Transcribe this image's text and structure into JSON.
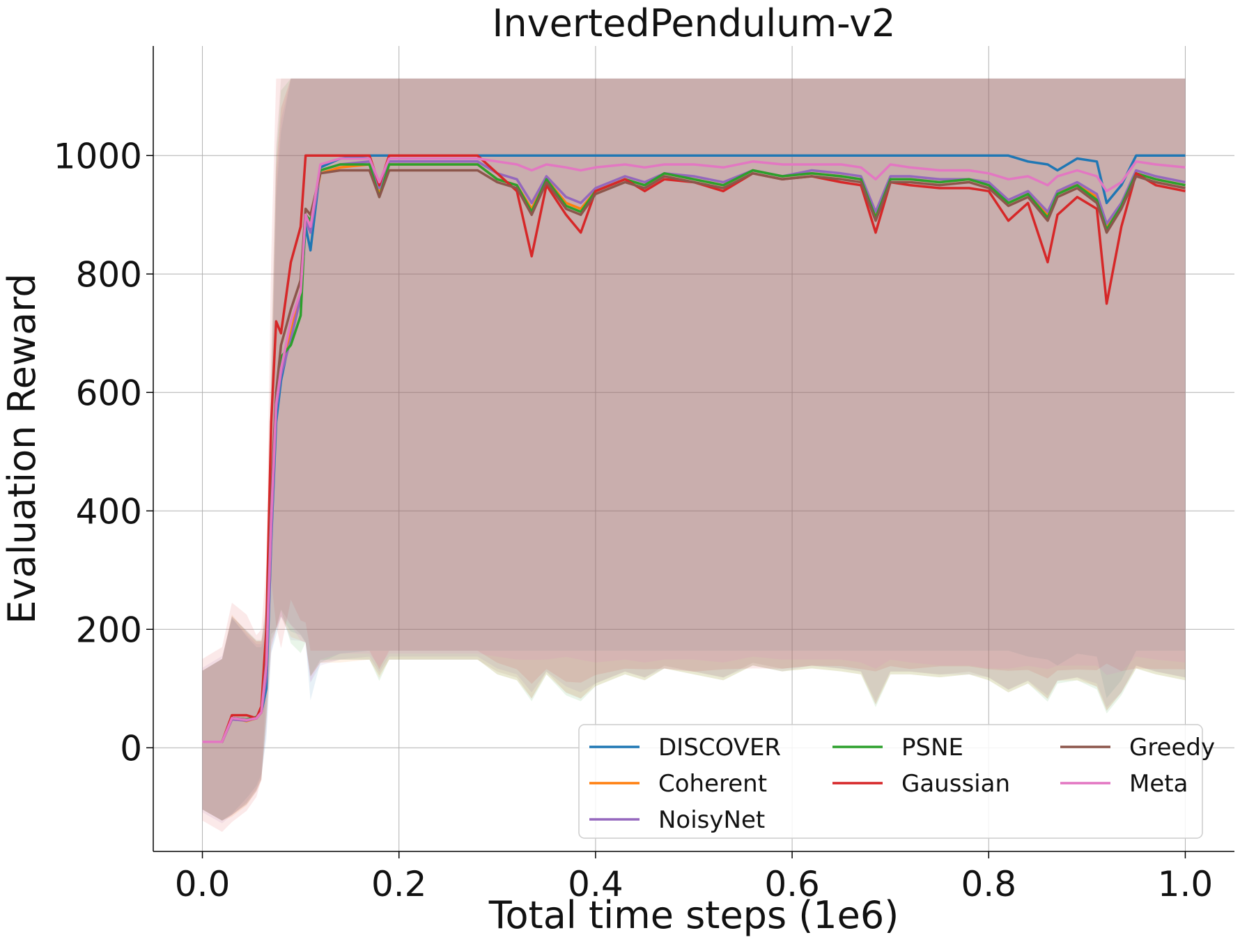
{
  "chart_data": {
    "type": "line",
    "title": "InvertedPendulum-v2",
    "xlabel": "Total time steps (1e6)",
    "ylabel": "Evaluation Reward",
    "xlim": [
      -0.05,
      1.05
    ],
    "ylim": [
      -175,
      1185
    ],
    "xticks": [
      0.0,
      0.2,
      0.4,
      0.6,
      0.8,
      1.0
    ],
    "xtick_labels": [
      "0.0",
      "0.2",
      "0.4",
      "0.6",
      "0.8",
      "1.0"
    ],
    "yticks": [
      0,
      200,
      400,
      600,
      800,
      1000
    ],
    "ytick_labels": [
      "0",
      "200",
      "400",
      "600",
      "800",
      "1000"
    ],
    "grid": true,
    "legend_position": "lower-right",
    "legend_columns": 3,
    "x": [
      0.0,
      0.02,
      0.03,
      0.045,
      0.055,
      0.06,
      0.065,
      0.07,
      0.075,
      0.08,
      0.09,
      0.1,
      0.105,
      0.11,
      0.12,
      0.14,
      0.17,
      0.18,
      0.19,
      0.22,
      0.25,
      0.28,
      0.3,
      0.32,
      0.335,
      0.35,
      0.37,
      0.385,
      0.4,
      0.43,
      0.45,
      0.47,
      0.5,
      0.53,
      0.56,
      0.59,
      0.62,
      0.65,
      0.67,
      0.685,
      0.7,
      0.72,
      0.75,
      0.78,
      0.8,
      0.82,
      0.84,
      0.86,
      0.87,
      0.89,
      0.91,
      0.92,
      0.935,
      0.95,
      0.97,
      1.0
    ],
    "series": [
      {
        "name": "DISCOVER",
        "color": "#1f77b4",
        "values": [
          10,
          10,
          50,
          48,
          50,
          60,
          100,
          350,
          550,
          620,
          700,
          760,
          880,
          840,
          980,
          995,
          1000,
          1000,
          1000,
          1000,
          1000,
          1000,
          1000,
          1000,
          1000,
          1000,
          1000,
          1000,
          1000,
          1000,
          1000,
          1000,
          1000,
          1000,
          1000,
          1000,
          1000,
          1000,
          1000,
          1000,
          1000,
          1000,
          1000,
          1000,
          1000,
          1000,
          990,
          985,
          975,
          995,
          990,
          920,
          950,
          1000,
          1000,
          1000
        ],
        "band": [
          120,
          140,
          170,
          140,
          120,
          110,
          90,
          200,
          380,
          420,
          530,
          600,
          740,
          800,
          880,
          880,
          880,
          880,
          880,
          880,
          880,
          880,
          880,
          880,
          880,
          880,
          880,
          880,
          880,
          880,
          880,
          880,
          880,
          880,
          880,
          880,
          880,
          880,
          880,
          880,
          880,
          880,
          880,
          880,
          880,
          880,
          880,
          880,
          880,
          880,
          880,
          880,
          880,
          880,
          880,
          880
        ]
      },
      {
        "name": "Coherent",
        "color": "#ff7f0e",
        "values": [
          10,
          10,
          50,
          45,
          50,
          60,
          130,
          380,
          580,
          640,
          700,
          770,
          900,
          880,
          970,
          980,
          985,
          935,
          985,
          985,
          985,
          985,
          960,
          950,
          910,
          960,
          920,
          910,
          940,
          960,
          950,
          970,
          960,
          950,
          975,
          965,
          970,
          965,
          960,
          900,
          960,
          960,
          955,
          960,
          950,
          920,
          935,
          900,
          940,
          950,
          930,
          880,
          920,
          970,
          960,
          950
        ],
        "band": [
          120,
          140,
          175,
          150,
          130,
          120,
          90,
          220,
          400,
          440,
          540,
          620,
          760,
          800,
          870,
          880,
          880,
          860,
          880,
          880,
          880,
          880,
          880,
          880,
          870,
          880,
          870,
          870,
          880,
          880,
          880,
          880,
          880,
          880,
          880,
          880,
          880,
          880,
          880,
          870,
          880,
          880,
          880,
          880,
          880,
          870,
          870,
          860,
          870,
          880,
          870,
          860,
          870,
          880,
          880,
          880
        ]
      },
      {
        "name": "NoisyNet",
        "color": "#9467bd",
        "values": [
          10,
          10,
          48,
          46,
          50,
          60,
          120,
          360,
          570,
          630,
          690,
          760,
          890,
          870,
          975,
          985,
          990,
          945,
          990,
          990,
          990,
          990,
          970,
          960,
          920,
          965,
          930,
          920,
          945,
          965,
          955,
          970,
          965,
          955,
          975,
          965,
          975,
          970,
          965,
          905,
          965,
          965,
          960,
          960,
          955,
          925,
          940,
          905,
          940,
          955,
          935,
          885,
          920,
          975,
          965,
          955
        ],
        "band": [
          125,
          145,
          170,
          145,
          125,
          115,
          100,
          210,
          390,
          430,
          535,
          610,
          750,
          800,
          880,
          880,
          880,
          860,
          880,
          880,
          880,
          880,
          880,
          880,
          870,
          880,
          870,
          870,
          880,
          880,
          880,
          880,
          880,
          880,
          880,
          880,
          880,
          880,
          880,
          870,
          880,
          880,
          880,
          880,
          880,
          870,
          870,
          860,
          870,
          880,
          870,
          860,
          870,
          880,
          880,
          880
        ]
      },
      {
        "name": "PSNE",
        "color": "#2ca02c",
        "values": [
          10,
          10,
          50,
          48,
          52,
          62,
          140,
          400,
          590,
          660,
          680,
          730,
          900,
          890,
          975,
          985,
          985,
          930,
          985,
          985,
          985,
          985,
          960,
          950,
          905,
          960,
          915,
          905,
          940,
          960,
          950,
          970,
          960,
          950,
          975,
          965,
          970,
          965,
          960,
          895,
          960,
          960,
          955,
          960,
          950,
          920,
          935,
          895,
          935,
          950,
          925,
          875,
          915,
          970,
          960,
          950
        ],
        "band": [
          120,
          140,
          172,
          150,
          130,
          120,
          95,
          230,
          410,
          450,
          530,
          600,
          760,
          810,
          870,
          880,
          880,
          860,
          880,
          880,
          880,
          880,
          880,
          880,
          870,
          880,
          870,
          870,
          880,
          880,
          880,
          880,
          880,
          880,
          880,
          880,
          880,
          880,
          880,
          870,
          880,
          880,
          880,
          880,
          880,
          870,
          870,
          860,
          870,
          880,
          870,
          860,
          870,
          880,
          880,
          880
        ]
      },
      {
        "name": "Gaussian",
        "color": "#d62728",
        "values": [
          10,
          10,
          55,
          55,
          50,
          70,
          200,
          550,
          720,
          700,
          820,
          880,
          1000,
          1000,
          1000,
          1000,
          1000,
          950,
          1000,
          1000,
          1000,
          1000,
          970,
          940,
          830,
          950,
          900,
          870,
          940,
          960,
          940,
          960,
          955,
          940,
          970,
          960,
          965,
          955,
          950,
          870,
          955,
          950,
          945,
          945,
          940,
          890,
          920,
          820,
          900,
          930,
          910,
          750,
          880,
          970,
          950,
          940
        ],
        "band": [
          140,
          160,
          190,
          170,
          140,
          130,
          110,
          280,
          540,
          560,
          600,
          700,
          830,
          880,
          880,
          880,
          880,
          860,
          880,
          880,
          880,
          880,
          870,
          850,
          760,
          860,
          830,
          800,
          860,
          870,
          850,
          870,
          870,
          850,
          880,
          870,
          870,
          860,
          860,
          780,
          860,
          860,
          850,
          850,
          850,
          800,
          830,
          740,
          810,
          840,
          820,
          640,
          790,
          880,
          860,
          850
        ]
      },
      {
        "name": "Greedy",
        "color": "#8c564b",
        "values": [
          10,
          10,
          50,
          47,
          50,
          60,
          150,
          420,
          600,
          680,
          740,
          790,
          910,
          900,
          970,
          975,
          975,
          930,
          975,
          975,
          975,
          975,
          955,
          945,
          900,
          955,
          910,
          900,
          935,
          955,
          945,
          965,
          955,
          945,
          970,
          960,
          965,
          960,
          955,
          890,
          955,
          955,
          950,
          955,
          945,
          915,
          930,
          890,
          930,
          945,
          920,
          870,
          910,
          965,
          955,
          945
        ],
        "band": [
          120,
          140,
          172,
          150,
          130,
          120,
          100,
          240,
          420,
          470,
          560,
          630,
          770,
          820,
          870,
          870,
          870,
          850,
          870,
          870,
          870,
          870,
          870,
          870,
          860,
          870,
          860,
          860,
          870,
          870,
          870,
          870,
          870,
          870,
          870,
          870,
          870,
          870,
          870,
          860,
          870,
          870,
          870,
          870,
          870,
          860,
          860,
          850,
          860,
          870,
          860,
          850,
          860,
          870,
          870,
          870
        ]
      },
      {
        "name": "Meta",
        "color": "#e377c2",
        "values": [
          10,
          10,
          50,
          47,
          50,
          60,
          140,
          390,
          580,
          640,
          720,
          770,
          900,
          880,
          985,
          995,
          995,
          955,
          995,
          995,
          995,
          995,
          990,
          985,
          975,
          985,
          980,
          975,
          980,
          985,
          980,
          985,
          985,
          980,
          990,
          985,
          985,
          985,
          980,
          960,
          985,
          980,
          975,
          975,
          970,
          960,
          965,
          950,
          965,
          975,
          965,
          940,
          955,
          990,
          985,
          980
        ],
        "band": [
          120,
          140,
          172,
          150,
          130,
          120,
          95,
          230,
          400,
          440,
          540,
          620,
          760,
          810,
          880,
          880,
          880,
          860,
          880,
          880,
          880,
          880,
          880,
          880,
          870,
          880,
          870,
          870,
          880,
          880,
          880,
          880,
          880,
          880,
          880,
          880,
          880,
          880,
          880,
          870,
          880,
          880,
          880,
          880,
          880,
          870,
          870,
          860,
          870,
          880,
          870,
          860,
          870,
          880,
          880,
          880
        ]
      }
    ]
  }
}
